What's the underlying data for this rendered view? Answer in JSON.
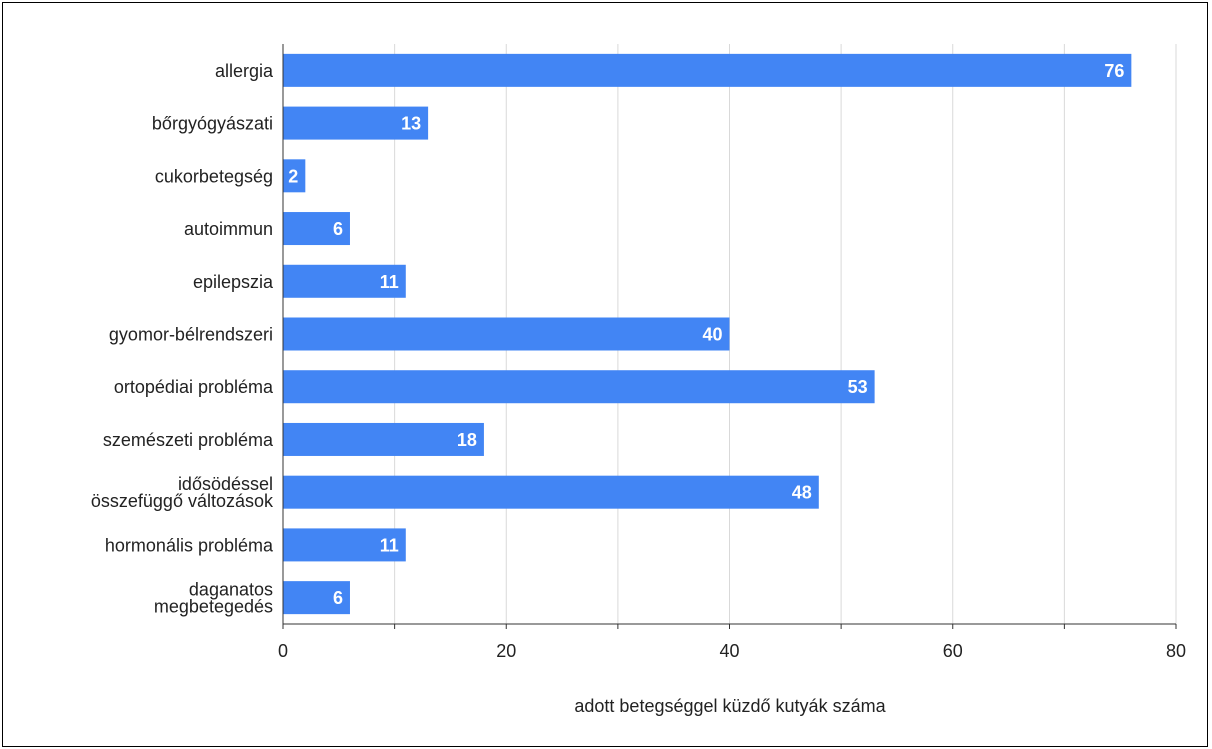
{
  "chart_data": {
    "type": "bar",
    "orientation": "horizontal",
    "categories": [
      [
        "allergia"
      ],
      [
        "bőrgyógyászati"
      ],
      [
        "cukorbetegség"
      ],
      [
        "autoimmun"
      ],
      [
        "epilepszia"
      ],
      [
        "gyomor-bélrendszeri"
      ],
      [
        "ortopédiai probléma"
      ],
      [
        "szemészeti probléma"
      ],
      [
        "idősödéssel",
        "összefüggő változások"
      ],
      [
        "hormonális probléma"
      ],
      [
        "daganatos",
        "megbetegedés"
      ]
    ],
    "values": [
      76,
      13,
      2,
      6,
      11,
      40,
      53,
      18,
      48,
      11,
      6
    ],
    "xlabel": "adott betegséggel küzdő kutyák száma",
    "ylabel": "",
    "xlim": [
      0,
      80
    ],
    "xticks": [
      0,
      20,
      40,
      60,
      80
    ],
    "grid": true,
    "data_labels": true,
    "bar_color": "#4285f4",
    "label_color": "#ffffff",
    "grid_color": "#d9d9d9",
    "axis_color": "#333333"
  }
}
